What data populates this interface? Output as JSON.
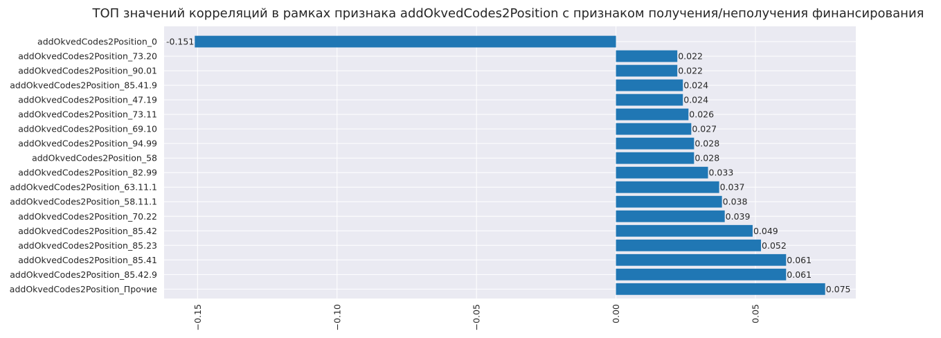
{
  "chart_data": {
    "type": "bar",
    "orientation": "horizontal",
    "title": "ТОП значений корреляций в рамках признака addOkvedCodes2Position с признаком получения/неполучения финансирования",
    "xlabel": "",
    "ylabel": "",
    "xlim": [
      -0.162,
      0.086
    ],
    "grid": true,
    "bar_color": "#2077b4",
    "background_color": "#eaeaf2",
    "categories": [
      "addOkvedCodes2Position_0",
      "addOkvedCodes2Position_73.20",
      "addOkvedCodes2Position_90.01",
      "addOkvedCodes2Position_85.41.9",
      "addOkvedCodes2Position_47.19",
      "addOkvedCodes2Position_73.11",
      "addOkvedCodes2Position_69.10",
      "addOkvedCodes2Position_94.99",
      "addOkvedCodes2Position_58",
      "addOkvedCodes2Position_82.99",
      "addOkvedCodes2Position_63.11.1",
      "addOkvedCodes2Position_58.11.1",
      "addOkvedCodes2Position_70.22",
      "addOkvedCodes2Position_85.42",
      "addOkvedCodes2Position_85.23",
      "addOkvedCodes2Position_85.41",
      "addOkvedCodes2Position_85.42.9",
      "addOkvedCodes2Position_Прочие"
    ],
    "values": [
      -0.151,
      0.022,
      0.022,
      0.024,
      0.024,
      0.026,
      0.027,
      0.028,
      0.028,
      0.033,
      0.037,
      0.038,
      0.039,
      0.049,
      0.052,
      0.061,
      0.061,
      0.075
    ],
    "data_labels": [
      "-0.151",
      "0.022",
      "0.022",
      "0.024",
      "0.024",
      "0.026",
      "0.027",
      "0.028",
      "0.028",
      "0.033",
      "0.037",
      "0.038",
      "0.039",
      "0.049",
      "0.052",
      "0.061",
      "0.061",
      "0.075"
    ],
    "x_ticks": [
      -0.15,
      -0.1,
      -0.05,
      0.0,
      0.05
    ],
    "x_tick_labels": [
      "−0.15",
      "−0.10",
      "−0.05",
      "0.00",
      "0.05"
    ]
  }
}
